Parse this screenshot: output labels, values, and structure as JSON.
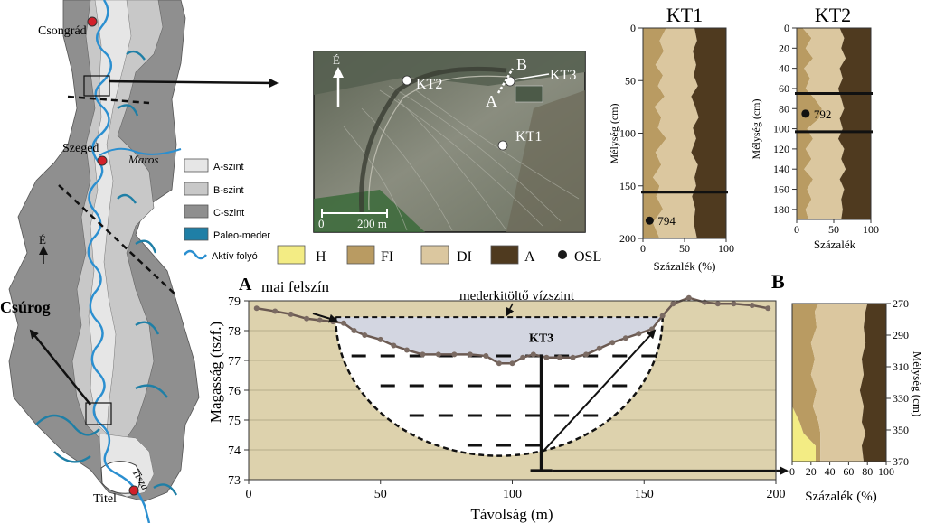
{
  "map": {
    "places": {
      "csongrad": "Csongrád",
      "szeged": "Szeged",
      "titel": "Titel",
      "csurog": "Csúrog",
      "maros": "Maros",
      "tisza": "Tisza"
    },
    "north": "É",
    "legend": [
      {
        "label": "A-szint",
        "color": "#e6e6e6"
      },
      {
        "label": "B-szint",
        "color": "#c8c8c8"
      },
      {
        "label": "C-szint",
        "color": "#8f8f8f"
      },
      {
        "label": "Paleo-meder",
        "color": "#1f7fa6"
      },
      {
        "label": "Aktív folyó",
        "color": "#2b8fd0"
      }
    ]
  },
  "aerial": {
    "north": "É",
    "labels": {
      "kt1": "KT1",
      "kt2": "KT2",
      "kt3": "KT3",
      "a": "A",
      "b": "B"
    },
    "scale": {
      "zero": "0",
      "dist": "200 m"
    }
  },
  "sediment_legend": [
    {
      "code": "H",
      "color": "#f3ec84"
    },
    {
      "code": "FI",
      "color": "#b99b62"
    },
    {
      "code": "DI",
      "color": "#dbc79f"
    },
    {
      "code": "A",
      "color": "#4f3a1f"
    },
    {
      "code": "OSL",
      "color": "#1a1a1a"
    }
  ],
  "chart_data": [
    {
      "type": "area",
      "title": "KT1",
      "xlabel": "Százalék (%)",
      "ylabel": "Mélység (cm)",
      "xlim": [
        0,
        100
      ],
      "ylim": [
        0,
        200
      ],
      "xticks": [
        "0",
        "50",
        "100"
      ],
      "yticks": [
        "0",
        "50",
        "100",
        "150",
        "200"
      ],
      "depths": [
        0,
        12,
        22,
        35,
        45,
        55,
        65,
        75,
        85,
        95,
        105,
        118,
        130,
        142,
        150,
        160,
        172,
        185,
        200
      ],
      "boundaries": {
        "H_FI": [
          0,
          0,
          0,
          0,
          0,
          0,
          0,
          0,
          0,
          0,
          0,
          0,
          0,
          0,
          0,
          0,
          0,
          0,
          0
        ],
        "FI_DI": [
          28,
          20,
          25,
          15,
          24,
          18,
          26,
          14,
          22,
          18,
          28,
          15,
          22,
          12,
          20,
          16,
          24,
          12,
          20
        ],
        "DI_A": [
          62,
          65,
          60,
          64,
          61,
          66,
          58,
          63,
          67,
          60,
          64,
          58,
          66,
          62,
          64,
          59,
          63,
          61,
          65
        ]
      },
      "layer_boundaries_cm": [
        156
      ],
      "osl": [
        {
          "id": "794",
          "depth": 183,
          "pct": 8
        }
      ]
    },
    {
      "type": "area",
      "title": "KT2",
      "xlabel": "Százalék",
      "ylabel": "Mélység (cm)",
      "xlim": [
        0,
        100
      ],
      "ylim": [
        0,
        190
      ],
      "xticks": [
        "0",
        "50",
        "100"
      ],
      "yticks": [
        "0",
        "20",
        "40",
        "60",
        "80",
        "100",
        "120",
        "140",
        "160",
        "180"
      ],
      "depths": [
        0,
        10,
        20,
        30,
        40,
        50,
        60,
        70,
        80,
        90,
        100,
        110,
        120,
        130,
        140,
        150,
        160,
        170,
        180,
        190
      ],
      "boundaries": {
        "H_FI": [
          0,
          0,
          0,
          0,
          0,
          0,
          0,
          0,
          0,
          0,
          0,
          0,
          0,
          0,
          0,
          0,
          0,
          0,
          0,
          0
        ],
        "FI_DI": [
          8,
          20,
          12,
          22,
          10,
          18,
          12,
          24,
          34,
          30,
          14,
          22,
          12,
          20,
          10,
          22,
          14,
          20,
          12,
          16
        ],
        "DI_A": [
          58,
          64,
          60,
          66,
          58,
          62,
          56,
          60,
          64,
          58,
          62,
          56,
          64,
          60,
          66,
          58,
          64,
          60,
          62,
          60
        ]
      },
      "layer_boundaries_cm": [
        65,
        103
      ],
      "osl": [
        {
          "id": "792",
          "depth": 85,
          "pct": 12
        }
      ]
    },
    {
      "type": "line",
      "title": "",
      "xlabel": "Távolság (m)",
      "ylabel": "Magasság (tszf.)",
      "xlim": [
        0,
        200
      ],
      "ylim": [
        73,
        79
      ],
      "xticks": [
        "0",
        "50",
        "100",
        "150",
        "200"
      ],
      "yticks": [
        "73",
        "74",
        "75",
        "76",
        "77",
        "78",
        "79"
      ],
      "surface": {
        "x": [
          3,
          10,
          16,
          22,
          27,
          32,
          36,
          40,
          44,
          50,
          55,
          60,
          66,
          72,
          78,
          84,
          90,
          95,
          100,
          104,
          108,
          113,
          118,
          123,
          128,
          133,
          138,
          143,
          148,
          153,
          157,
          161,
          167,
          173,
          178,
          184,
          191,
          197
        ],
        "y": [
          78.75,
          78.65,
          78.55,
          78.4,
          78.35,
          78.3,
          78.25,
          78.0,
          77.85,
          77.7,
          77.5,
          77.35,
          77.2,
          77.2,
          77.2,
          77.2,
          77.15,
          76.9,
          76.9,
          77.1,
          77.2,
          77.1,
          77.1,
          77.1,
          77.2,
          77.4,
          77.6,
          77.75,
          77.9,
          78.05,
          78.5,
          78.9,
          79.1,
          78.95,
          78.9,
          78.9,
          78.85,
          78.75
        ]
      },
      "fill_level": 78.45,
      "channel_bottom": 73.8,
      "channel_edges": [
        33,
        157
      ],
      "kt3_x": 111,
      "kt3_range": [
        73.3,
        77.2
      ],
      "labels": {
        "a": "A",
        "b": "B",
        "surface": "mai felszín",
        "fill": "mederkitöltő vízszint",
        "kt3": "KT3"
      }
    },
    {
      "type": "area",
      "title": "B",
      "xlabel": "Százalék (%)",
      "ylabel": "Mélység (cm)",
      "xlim": [
        0,
        100
      ],
      "ylim": [
        270,
        370
      ],
      "xticks": [
        "0",
        "20",
        "40",
        "60",
        "80",
        "100"
      ],
      "yticks": [
        "270",
        "290",
        "310",
        "330",
        "350",
        "370"
      ],
      "depths": [
        270,
        275,
        285,
        295,
        305,
        315,
        325,
        335,
        345,
        352,
        360,
        370
      ],
      "boundaries": {
        "H_FI": [
          0,
          0,
          0,
          0,
          0,
          0,
          0,
          0,
          8,
          12,
          25,
          25
        ],
        "FI_DI": [
          28,
          24,
          26,
          20,
          24,
          20,
          26,
          22,
          28,
          30,
          30,
          30
        ],
        "DI_A": [
          80,
          78,
          76,
          78,
          74,
          76,
          72,
          76,
          74,
          78,
          74,
          76
        ]
      },
      "layer_boundaries_cm": [],
      "osl": []
    }
  ]
}
